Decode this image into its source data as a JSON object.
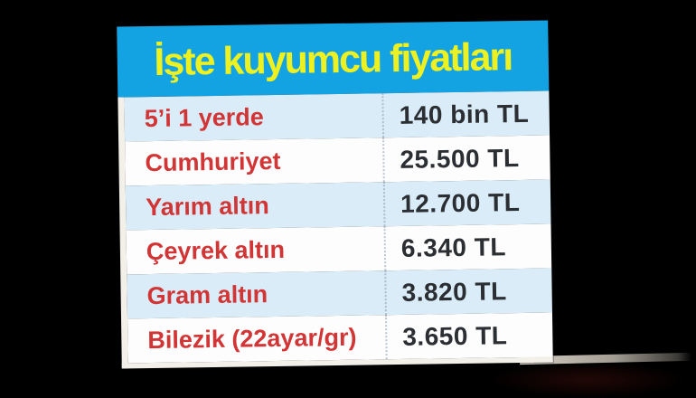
{
  "header": {
    "title": "İşte kuyumcu fiyatları"
  },
  "rows": [
    {
      "label": "5’i 1 yerde",
      "value": "140 bin TL"
    },
    {
      "label": "Cumhuriyet",
      "value": "25.500 TL"
    },
    {
      "label": "Yarım altın",
      "value": "12.700 TL"
    },
    {
      "label": "Çeyrek altın",
      "value": "6.340 TL"
    },
    {
      "label": "Gram altın",
      "value": "3.820 TL"
    },
    {
      "label": "Bilezik (22ayar/gr)",
      "value": "3.650 TL"
    }
  ],
  "colors": {
    "background": "#000000",
    "header-bg": "#14a3e2",
    "title-yellow": "#edf021",
    "row-blue": "#d9ecf7",
    "row-white": "#fdfdfd",
    "label-red": "#d23535",
    "value-dark": "#2b2e32",
    "card-edge": "#f3efe9"
  },
  "chart_data": {
    "type": "table",
    "title": "İşte kuyumcu fiyatları",
    "categories": [
      "5’i 1 yerde",
      "Cumhuriyet",
      "Yarım altın",
      "Çeyrek altın",
      "Gram altın",
      "Bilezik (22ayar/gr)"
    ],
    "values": [
      "140 bin TL",
      "25.500 TL",
      "12.700 TL",
      "6.340 TL",
      "3.820 TL",
      "3.650 TL"
    ],
    "values_numeric_tl": [
      140000,
      25500,
      12700,
      6340,
      3820,
      3650
    ],
    "currency": "TL",
    "legend": "none",
    "layout": "two-column price list, label left (red), price right (dark), dotted column divider, alternating row shading"
  }
}
